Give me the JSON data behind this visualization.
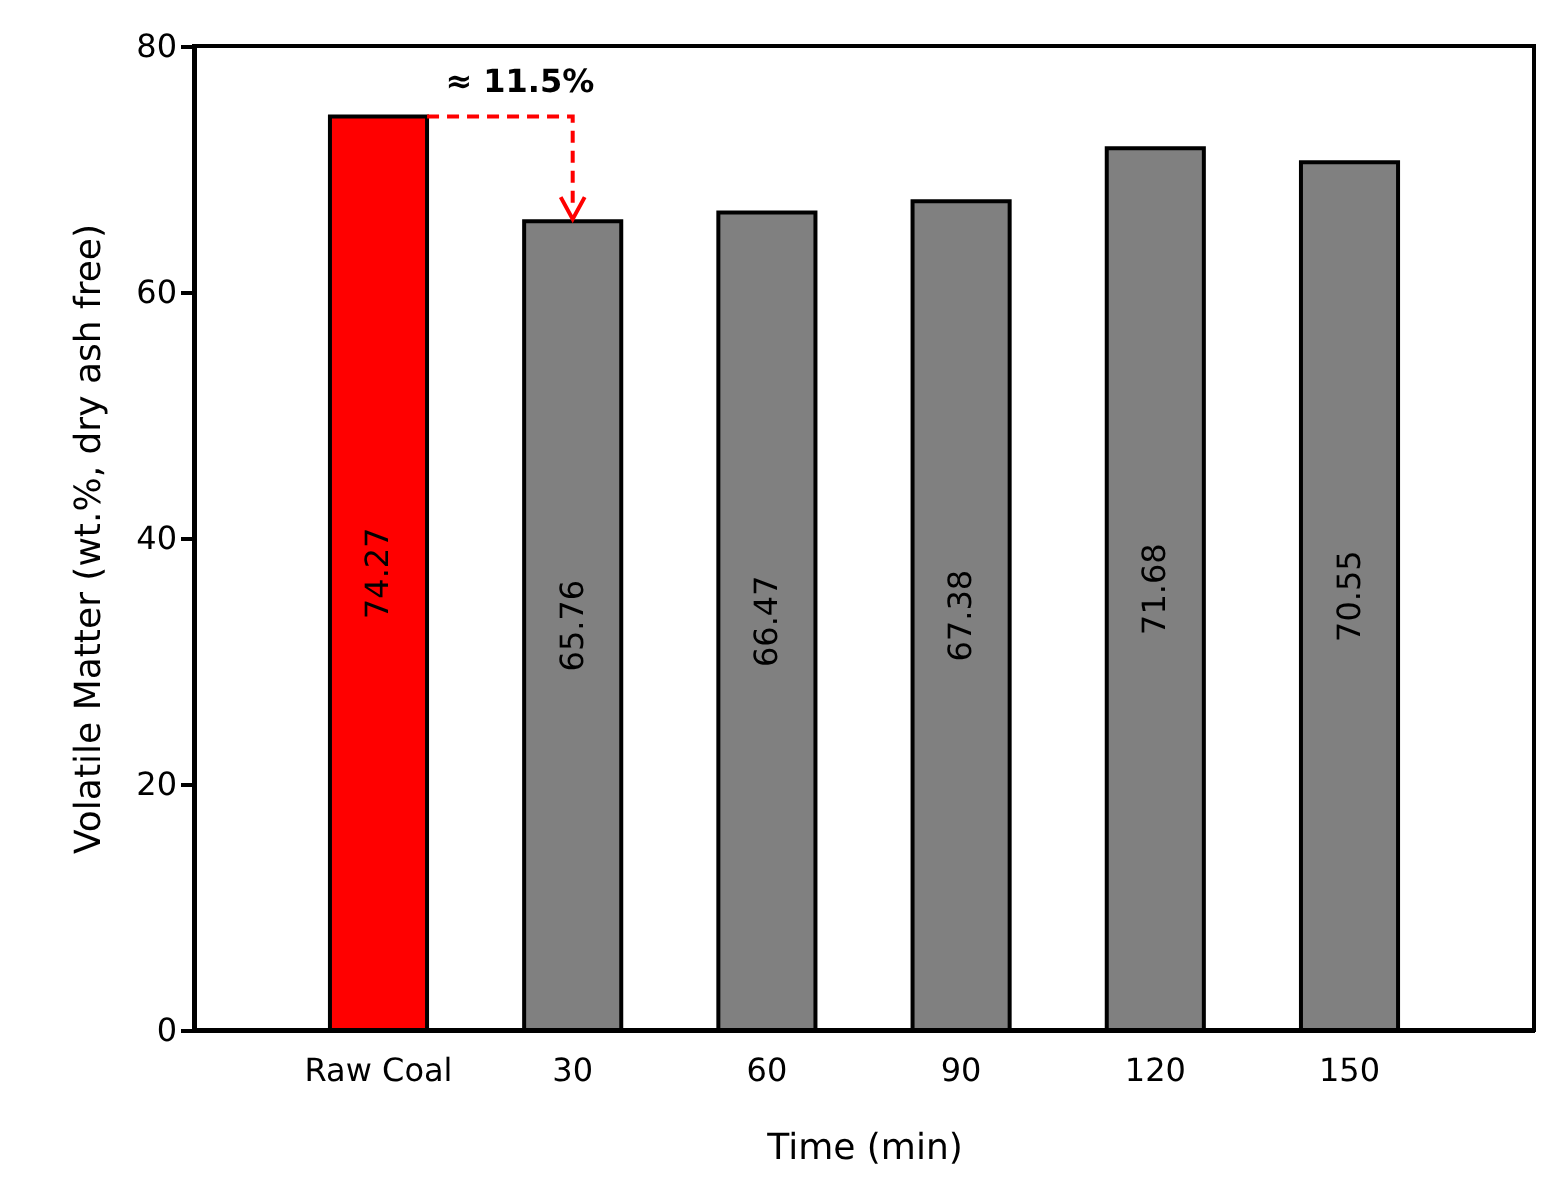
{
  "chart_data": {
    "type": "bar",
    "xlabel": "Time (min)",
    "ylabel": "Volatile Matter (wt.%, dry ash free)",
    "categories": [
      "Raw Coal",
      "30",
      "60",
      "90",
      "120",
      "150"
    ],
    "values": [
      74.27,
      65.76,
      66.47,
      67.38,
      71.68,
      70.55
    ],
    "colors": [
      "#ff0000",
      "#808080",
      "#808080",
      "#808080",
      "#808080",
      "#808080"
    ],
    "ylim": [
      0,
      80
    ],
    "yticks": [
      0,
      20,
      40,
      60,
      80
    ],
    "grid": false,
    "data_labels": true,
    "annotations": [
      "≈ 11.5%"
    ]
  }
}
